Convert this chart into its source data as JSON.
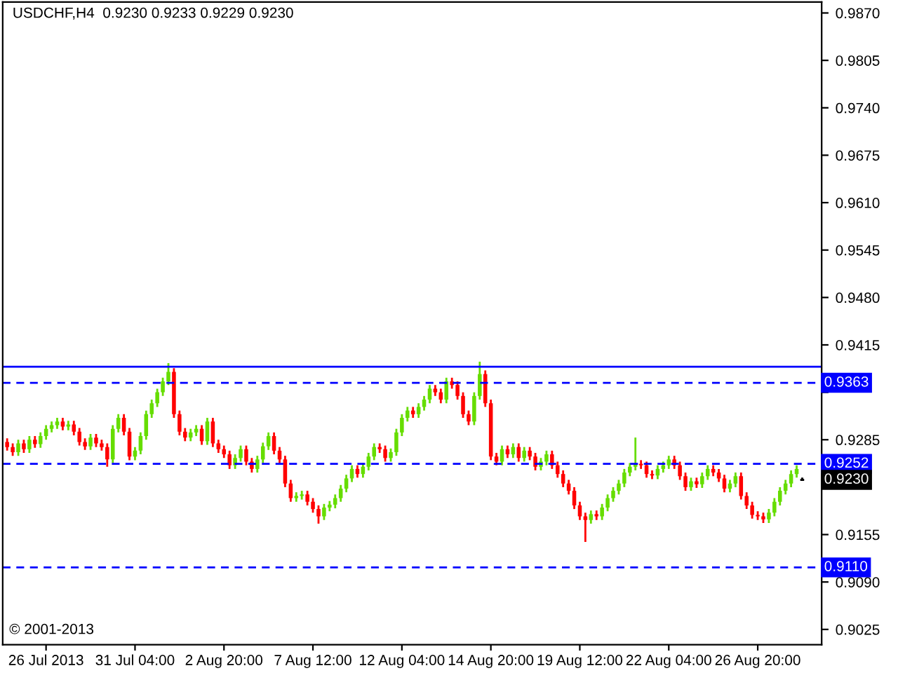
{
  "chart_data": {
    "type": "candlestick",
    "title": "USDCHF,H4  0.9230 0.9233 0.9229 0.9230",
    "categories": [
      null,
      null,
      null,
      null,
      null,
      null,
      null,
      "26 Jul 2013",
      null,
      null,
      null,
      null,
      null,
      null,
      null,
      null,
      null,
      null,
      null,
      null,
      null,
      null,
      null,
      "31 Jul 04:00",
      null,
      null,
      null,
      null,
      null,
      null,
      null,
      null,
      null,
      null,
      null,
      null,
      null,
      null,
      null,
      "2 Aug 20:00",
      null,
      null,
      null,
      null,
      null,
      null,
      null,
      null,
      null,
      null,
      null,
      null,
      null,
      null,
      null,
      "7 Aug 12:00",
      null,
      null,
      null,
      null,
      null,
      null,
      null,
      null,
      null,
      null,
      null,
      null,
      null,
      null,
      null,
      "12 Aug 04:00",
      null,
      null,
      null,
      null,
      null,
      null,
      null,
      null,
      null,
      null,
      null,
      null,
      null,
      null,
      null,
      "14 Aug 20:00",
      null,
      null,
      null,
      null,
      null,
      null,
      null,
      null,
      null,
      null,
      null,
      null,
      null,
      null,
      null,
      "19 Aug 12:00",
      null,
      null,
      null,
      null,
      null,
      null,
      null,
      null,
      null,
      null,
      null,
      null,
      null,
      null,
      null,
      "22 Aug 04:00",
      null,
      null,
      null,
      null,
      null,
      null,
      null,
      null,
      null,
      null,
      null,
      null,
      null,
      null,
      null,
      "26 Aug 20:00",
      null,
      null,
      null,
      null,
      null,
      null,
      null,
      null
    ],
    "ohlc": [
      [
        0.9282,
        0.9287,
        0.927,
        0.9275
      ],
      [
        0.9275,
        0.928,
        0.9263,
        0.9268
      ],
      [
        0.9268,
        0.9285,
        0.9263,
        0.928
      ],
      [
        0.928,
        0.9285,
        0.9267,
        0.9272
      ],
      [
        0.9272,
        0.929,
        0.9267,
        0.9285
      ],
      [
        0.9285,
        0.929,
        0.9274,
        0.9279
      ],
      [
        0.9279,
        0.9295,
        0.9274,
        0.929
      ],
      [
        0.929,
        0.9305,
        0.9285,
        0.93
      ],
      [
        0.93,
        0.931,
        0.9295,
        0.9305
      ],
      [
        0.9305,
        0.9315,
        0.93,
        0.931
      ],
      [
        0.931,
        0.9315,
        0.9298,
        0.9303
      ],
      [
        0.9303,
        0.9311,
        0.9298,
        0.9306
      ],
      [
        0.9306,
        0.9311,
        0.9291,
        0.9296
      ],
      [
        0.9296,
        0.9301,
        0.9277,
        0.9282
      ],
      [
        0.9282,
        0.9287,
        0.9271,
        0.9276
      ],
      [
        0.9276,
        0.9293,
        0.9271,
        0.9288
      ],
      [
        0.9288,
        0.9293,
        0.9275,
        0.928
      ],
      [
        0.928,
        0.9285,
        0.927,
        0.9275
      ],
      [
        0.9275,
        0.928,
        0.9248,
        0.9258
      ],
      [
        0.9258,
        0.9305,
        0.9253,
        0.93
      ],
      [
        0.93,
        0.932,
        0.9295,
        0.9315
      ],
      [
        0.9315,
        0.932,
        0.9291,
        0.9296
      ],
      [
        0.9296,
        0.9301,
        0.9257,
        0.9262
      ],
      [
        0.9262,
        0.9275,
        0.9257,
        0.927
      ],
      [
        0.927,
        0.9295,
        0.9265,
        0.929
      ],
      [
        0.929,
        0.9325,
        0.9285,
        0.932
      ],
      [
        0.932,
        0.934,
        0.9315,
        0.9335
      ],
      [
        0.9335,
        0.9355,
        0.933,
        0.935
      ],
      [
        0.935,
        0.937,
        0.9345,
        0.9365
      ],
      [
        0.9365,
        0.939,
        0.936,
        0.9378
      ],
      [
        0.9378,
        0.9383,
        0.9315,
        0.932
      ],
      [
        0.932,
        0.9325,
        0.9291,
        0.9296
      ],
      [
        0.9296,
        0.9301,
        0.9283,
        0.9288
      ],
      [
        0.9288,
        0.93,
        0.9283,
        0.9295
      ],
      [
        0.9295,
        0.9305,
        0.929,
        0.93
      ],
      [
        0.93,
        0.9305,
        0.9278,
        0.9283
      ],
      [
        0.9283,
        0.9315,
        0.9278,
        0.931
      ],
      [
        0.931,
        0.9315,
        0.9275,
        0.928
      ],
      [
        0.928,
        0.9285,
        0.9267,
        0.9272
      ],
      [
        0.9272,
        0.9277,
        0.926,
        0.9265
      ],
      [
        0.9265,
        0.927,
        0.9245,
        0.925
      ],
      [
        0.925,
        0.9265,
        0.9245,
        0.926
      ],
      [
        0.926,
        0.9277,
        0.9255,
        0.9272
      ],
      [
        0.9272,
        0.9277,
        0.925,
        0.9255
      ],
      [
        0.9255,
        0.926,
        0.924,
        0.9245
      ],
      [
        0.9245,
        0.9263,
        0.924,
        0.9258
      ],
      [
        0.9258,
        0.9281,
        0.9253,
        0.9276
      ],
      [
        0.9276,
        0.9295,
        0.9271,
        0.929
      ],
      [
        0.929,
        0.9295,
        0.9265,
        0.927
      ],
      [
        0.927,
        0.9275,
        0.9253,
        0.9258
      ],
      [
        0.9258,
        0.9263,
        0.922,
        0.9225
      ],
      [
        0.9225,
        0.923,
        0.92,
        0.9205
      ],
      [
        0.9205,
        0.9213,
        0.92,
        0.9208
      ],
      [
        0.9208,
        0.9215,
        0.9203,
        0.921
      ],
      [
        0.921,
        0.9215,
        0.9195,
        0.92
      ],
      [
        0.92,
        0.9205,
        0.9185,
        0.919
      ],
      [
        0.919,
        0.9195,
        0.917,
        0.918
      ],
      [
        0.918,
        0.9197,
        0.9175,
        0.9192
      ],
      [
        0.9192,
        0.9201,
        0.9187,
        0.9196
      ],
      [
        0.9196,
        0.921,
        0.9191,
        0.9205
      ],
      [
        0.9205,
        0.9223,
        0.92,
        0.9218
      ],
      [
        0.9218,
        0.9237,
        0.9213,
        0.9232
      ],
      [
        0.9232,
        0.925,
        0.9227,
        0.9245
      ],
      [
        0.9245,
        0.925,
        0.9233,
        0.9238
      ],
      [
        0.9238,
        0.9253,
        0.9233,
        0.9248
      ],
      [
        0.9248,
        0.9267,
        0.9243,
        0.9262
      ],
      [
        0.9262,
        0.928,
        0.9257,
        0.9275
      ],
      [
        0.9275,
        0.928,
        0.9267,
        0.9272
      ],
      [
        0.9272,
        0.9277,
        0.9255,
        0.926
      ],
      [
        0.926,
        0.9273,
        0.9255,
        0.9268
      ],
      [
        0.9268,
        0.93,
        0.9263,
        0.9295
      ],
      [
        0.9295,
        0.932,
        0.929,
        0.9315
      ],
      [
        0.9315,
        0.933,
        0.931,
        0.9325
      ],
      [
        0.9325,
        0.933,
        0.9315,
        0.932
      ],
      [
        0.932,
        0.9335,
        0.9315,
        0.933
      ],
      [
        0.933,
        0.9345,
        0.9325,
        0.934
      ],
      [
        0.934,
        0.936,
        0.9335,
        0.9355
      ],
      [
        0.9355,
        0.936,
        0.9345,
        0.935
      ],
      [
        0.935,
        0.9355,
        0.9335,
        0.934
      ],
      [
        0.934,
        0.937,
        0.9335,
        0.9365
      ],
      [
        0.9365,
        0.937,
        0.9355,
        0.936
      ],
      [
        0.936,
        0.9365,
        0.934,
        0.9345
      ],
      [
        0.9345,
        0.935,
        0.9315,
        0.932
      ],
      [
        0.932,
        0.9325,
        0.9305,
        0.931
      ],
      [
        0.931,
        0.935,
        0.9305,
        0.9345
      ],
      [
        0.9345,
        0.9392,
        0.934,
        0.9375
      ],
      [
        0.9375,
        0.938,
        0.933,
        0.9335
      ],
      [
        0.9335,
        0.934,
        0.9257,
        0.9262
      ],
      [
        0.9262,
        0.9267,
        0.925,
        0.9255
      ],
      [
        0.9255,
        0.9277,
        0.925,
        0.9272
      ],
      [
        0.9272,
        0.9277,
        0.926,
        0.9265
      ],
      [
        0.9265,
        0.928,
        0.926,
        0.9275
      ],
      [
        0.9275,
        0.928,
        0.9255,
        0.926
      ],
      [
        0.926,
        0.9275,
        0.9255,
        0.927
      ],
      [
        0.927,
        0.9275,
        0.9257,
        0.9262
      ],
      [
        0.9262,
        0.9267,
        0.9243,
        0.9248
      ],
      [
        0.9248,
        0.926,
        0.9243,
        0.9255
      ],
      [
        0.9255,
        0.927,
        0.925,
        0.9265
      ],
      [
        0.9265,
        0.927,
        0.9245,
        0.925
      ],
      [
        0.925,
        0.9255,
        0.9233,
        0.9238
      ],
      [
        0.9238,
        0.9243,
        0.922,
        0.9225
      ],
      [
        0.9225,
        0.923,
        0.921,
        0.9215
      ],
      [
        0.9215,
        0.922,
        0.919,
        0.9195
      ],
      [
        0.9195,
        0.92,
        0.9175,
        0.918
      ],
      [
        0.918,
        0.9185,
        0.9145,
        0.9175
      ],
      [
        0.9175,
        0.9188,
        0.917,
        0.9183
      ],
      [
        0.9183,
        0.9188,
        0.9175,
        0.918
      ],
      [
        0.918,
        0.9197,
        0.9175,
        0.9192
      ],
      [
        0.9192,
        0.921,
        0.9187,
        0.9205
      ],
      [
        0.9205,
        0.922,
        0.92,
        0.9215
      ],
      [
        0.9215,
        0.923,
        0.921,
        0.9225
      ],
      [
        0.9225,
        0.9245,
        0.922,
        0.924
      ],
      [
        0.924,
        0.9253,
        0.9235,
        0.9248
      ],
      [
        0.9248,
        0.9288,
        0.9243,
        0.9252
      ],
      [
        0.9252,
        0.9257,
        0.9245,
        0.925
      ],
      [
        0.925,
        0.9255,
        0.9233,
        0.9238
      ],
      [
        0.9238,
        0.9243,
        0.9231,
        0.9236
      ],
      [
        0.9236,
        0.925,
        0.9231,
        0.9245
      ],
      [
        0.9245,
        0.9255,
        0.924,
        0.925
      ],
      [
        0.925,
        0.9263,
        0.9245,
        0.9258
      ],
      [
        0.9258,
        0.9263,
        0.9245,
        0.925
      ],
      [
        0.925,
        0.9255,
        0.923,
        0.9235
      ],
      [
        0.9235,
        0.924,
        0.9215,
        0.922
      ],
      [
        0.922,
        0.9233,
        0.9215,
        0.9228
      ],
      [
        0.9228,
        0.9233,
        0.9219,
        0.9224
      ],
      [
        0.9224,
        0.924,
        0.9219,
        0.9235
      ],
      [
        0.9235,
        0.925,
        0.923,
        0.9245
      ],
      [
        0.9245,
        0.925,
        0.9235,
        0.924
      ],
      [
        0.924,
        0.9245,
        0.9227,
        0.9232
      ],
      [
        0.9232,
        0.9237,
        0.9213,
        0.9218
      ],
      [
        0.9218,
        0.923,
        0.9213,
        0.9225
      ],
      [
        0.9225,
        0.924,
        0.922,
        0.9235
      ],
      [
        0.9235,
        0.924,
        0.9203,
        0.9208
      ],
      [
        0.9208,
        0.9213,
        0.919,
        0.9195
      ],
      [
        0.9195,
        0.92,
        0.9177,
        0.9182
      ],
      [
        0.9182,
        0.9187,
        0.9175,
        0.918
      ],
      [
        0.918,
        0.9185,
        0.9171,
        0.9176
      ],
      [
        0.9176,
        0.919,
        0.9171,
        0.9185
      ],
      [
        0.9185,
        0.9205,
        0.918,
        0.92
      ],
      [
        0.92,
        0.922,
        0.9195,
        0.9215
      ],
      [
        0.9215,
        0.923,
        0.921,
        0.9225
      ],
      [
        0.9225,
        0.9243,
        0.922,
        0.9238
      ],
      [
        0.9238,
        0.925,
        0.9233,
        0.9245
      ],
      [
        0.923,
        0.9233,
        0.9229,
        0.923
      ]
    ],
    "ylim": [
      0.9004,
      0.9885
    ],
    "yticks": [
      0.9025,
      {
        "value": 0.909,
        "label": "0.9090"
      },
      0.9155,
      {
        "value": 0.922,
        "label": null
      },
      0.9285,
      {
        "value": 0.935,
        "label": null
      },
      0.9415,
      {
        "value": 0.948,
        "label": "0.9480"
      },
      0.9545,
      {
        "value": 0.961,
        "label": "0.9610"
      },
      0.9675,
      {
        "value": 0.974,
        "label": "0.9740"
      },
      0.9805,
      {
        "value": 0.987,
        "label": "0.9870"
      }
    ],
    "ref_lines": [
      {
        "axis": "y",
        "value": 0.9385,
        "color": "#0000ff",
        "line_style": "solid"
      },
      {
        "axis": "y",
        "value": 0.9363,
        "label": "0.9363",
        "color": "#0000ff",
        "line_style": "dashed"
      },
      {
        "axis": "y",
        "value": 0.9252,
        "label": "0.9252",
        "color": "#0000ff",
        "line_style": "dashed"
      },
      {
        "axis": "y",
        "value": 0.911,
        "label": "0.9110",
        "color": "#0000ff",
        "line_style": "dashed"
      }
    ],
    "annotations": [
      "0.9230",
      "© 2001-2013"
    ],
    "grid": false
  }
}
